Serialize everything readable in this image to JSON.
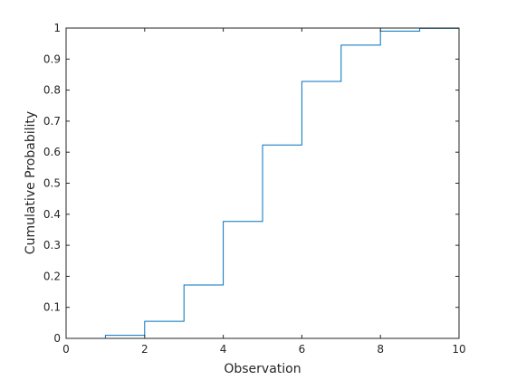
{
  "chart_data": {
    "type": "line",
    "subtype": "stairs",
    "title": "",
    "xlabel": "Observation",
    "ylabel": "Cumulative Probability",
    "xlim": [
      0,
      10
    ],
    "ylim": [
      0,
      1
    ],
    "x_ticks": [
      "0",
      "2",
      "4",
      "6",
      "8",
      "10"
    ],
    "y_ticks": [
      "0",
      "0.1",
      "0.2",
      "0.3",
      "0.4",
      "0.5",
      "0.6",
      "0.7",
      "0.8",
      "0.9",
      "1"
    ],
    "grid": false,
    "series": [
      {
        "color": "#0072bd",
        "x": [
          0,
          1,
          2,
          3,
          4,
          5,
          6,
          7,
          8,
          9,
          10
        ],
        "y": [
          0.0,
          0.01,
          0.055,
          0.172,
          0.377,
          0.623,
          0.828,
          0.945,
          0.99,
          0.999,
          1.0
        ]
      }
    ]
  }
}
